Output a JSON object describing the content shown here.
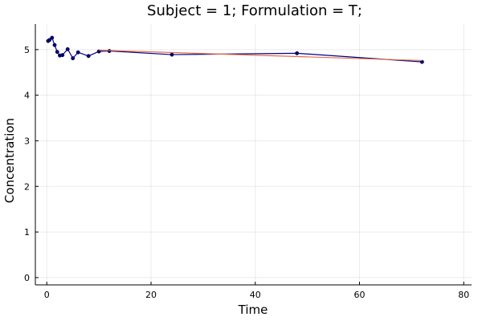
{
  "chart_data": {
    "type": "line",
    "title": "Subject = 1; Formulation = T;",
    "xlabel": "Time",
    "ylabel": "Concentration",
    "xlim": [
      -2.2,
      81.5
    ],
    "ylim": [
      -0.16,
      5.56
    ],
    "xticks": [
      0,
      20,
      40,
      60,
      80
    ],
    "yticks": [
      0,
      1,
      2,
      3,
      4,
      5
    ],
    "grid": true,
    "legend": "none",
    "series": [
      {
        "color": "#00008b",
        "markers": true,
        "x": [
          0.25,
          0.5,
          1,
          1.5,
          2,
          2.5,
          3,
          4,
          5,
          6,
          8,
          10,
          12,
          24,
          48,
          72
        ],
        "y": [
          5.19,
          5.21,
          5.26,
          5.1,
          4.95,
          4.87,
          4.88,
          5.01,
          4.81,
          4.94,
          4.86,
          4.96,
          4.97,
          4.89,
          4.92,
          4.73
        ]
      },
      {
        "color": "#e26f46",
        "markers": false,
        "x": [
          10,
          12,
          72
        ],
        "y": [
          4.99,
          4.98,
          4.76
        ]
      }
    ]
  }
}
